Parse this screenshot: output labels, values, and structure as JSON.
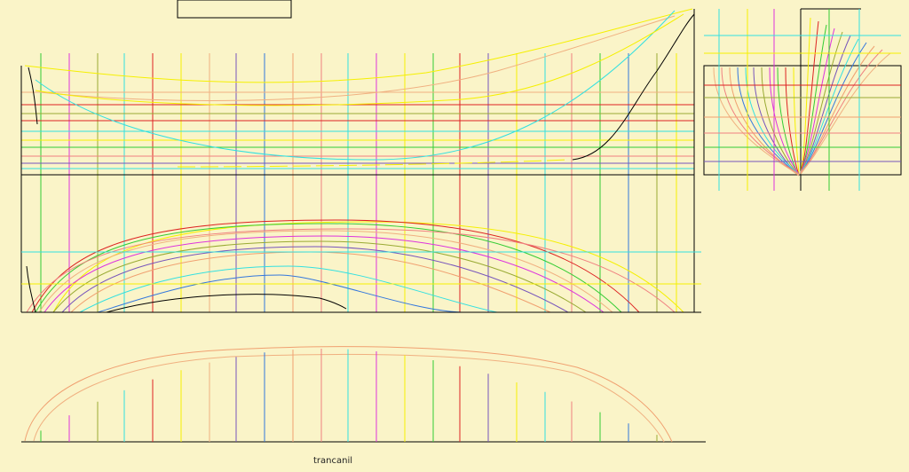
{
  "drawing": {
    "caption": "trancanil"
  },
  "colors": {
    "background": "#faf4c8",
    "frame": "#000000",
    "yellow": "#f5f000",
    "cyan": "#33e0e0",
    "green": "#33cc33",
    "red": "#dd2222",
    "orange": "#f0a070",
    "magenta": "#dd33dd",
    "blue": "#3377dd",
    "purple": "#7755bb",
    "olive": "#99aa33",
    "pink": "#f08080",
    "peach": "#f0b080"
  }
}
